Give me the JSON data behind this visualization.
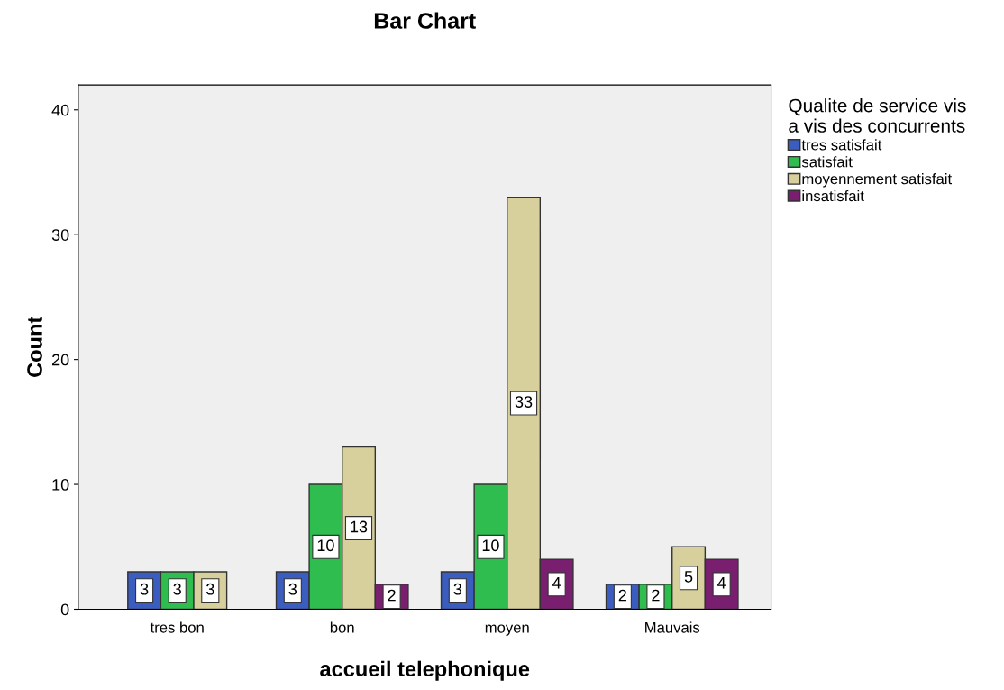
{
  "chart_data": {
    "type": "bar",
    "title": "Bar Chart",
    "xlabel": "accueil telephonique",
    "ylabel": "Count",
    "legend_title": "Qualite de service vis\na vis des concurrents",
    "categories": [
      "tres bon",
      "bon",
      "moyen",
      "Mauvais"
    ],
    "series": [
      {
        "name": "tres satisfait",
        "color": "#3a5dbf",
        "values": [
          3,
          3,
          3,
          2
        ]
      },
      {
        "name": "satisfait",
        "color": "#2fbd4f",
        "values": [
          3,
          10,
          10,
          2
        ]
      },
      {
        "name": "moyennement satisfait",
        "color": "#d8d09c",
        "values": [
          3,
          13,
          33,
          5
        ]
      },
      {
        "name": "insatisfait",
        "color": "#7a1f70",
        "values": [
          null,
          2,
          4,
          4
        ]
      }
    ],
    "ylim": [
      0,
      42
    ],
    "yticks": [
      0,
      10,
      20,
      30,
      40
    ],
    "grid": false,
    "legend": "top right",
    "data_labels": true
  }
}
